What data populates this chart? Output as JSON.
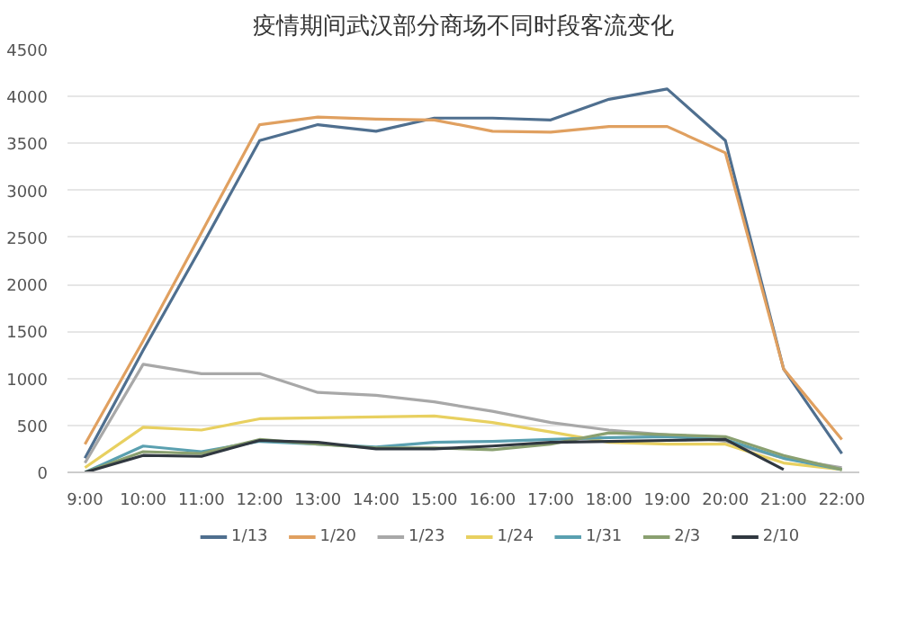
{
  "chart_data": {
    "type": "line",
    "title": "疫情期间武汉部分商场不同时段客流变化",
    "categories": [
      "9:00",
      "10:00",
      "11:00",
      "12:00",
      "13:00",
      "14:00",
      "15:00",
      "16:00",
      "17:00",
      "18:00",
      "19:00",
      "20:00",
      "21:00",
      "22:00"
    ],
    "series": [
      {
        "name": "1/13",
        "color": "#4f6f8f",
        "values": [
          150,
          1300,
          2400,
          3530,
          3700,
          3630,
          3770,
          3770,
          3750,
          3970,
          4080,
          3530,
          1100,
          200
        ]
      },
      {
        "name": "1/20",
        "color": "#e0a060",
        "values": [
          300,
          1400,
          2550,
          3700,
          3780,
          3760,
          3750,
          3630,
          3620,
          3680,
          3680,
          3400,
          1100,
          350
        ]
      },
      {
        "name": "1/23",
        "color": "#a8a8a8",
        "values": [
          100,
          1150,
          1050,
          1050,
          850,
          820,
          750,
          650,
          530,
          450,
          400,
          330,
          150,
          50
        ]
      },
      {
        "name": "1/24",
        "color": "#e8d060",
        "values": [
          50,
          480,
          450,
          570,
          580,
          590,
          600,
          530,
          430,
          320,
          300,
          300,
          100,
          30
        ]
      },
      {
        "name": "1/31",
        "color": "#5aa0b0",
        "values": [
          0,
          280,
          220,
          330,
          300,
          270,
          320,
          330,
          350,
          370,
          380,
          350,
          150,
          30
        ]
      },
      {
        "name": "2/3",
        "color": "#8aa070",
        "values": [
          0,
          220,
          200,
          350,
          300,
          260,
          260,
          240,
          300,
          420,
          400,
          380,
          180,
          30
        ]
      },
      {
        "name": "2/10",
        "color": "#303840",
        "values": [
          0,
          180,
          170,
          340,
          320,
          250,
          250,
          280,
          320,
          330,
          340,
          350,
          30,
          null
        ]
      }
    ],
    "ylim": [
      0,
      4500
    ],
    "yticks": [
      0,
      500,
      1000,
      1500,
      2000,
      2500,
      3000,
      3500,
      4000,
      4500
    ],
    "grid": "y",
    "legend": "bottom",
    "marker": "none",
    "line_style": "solid"
  }
}
